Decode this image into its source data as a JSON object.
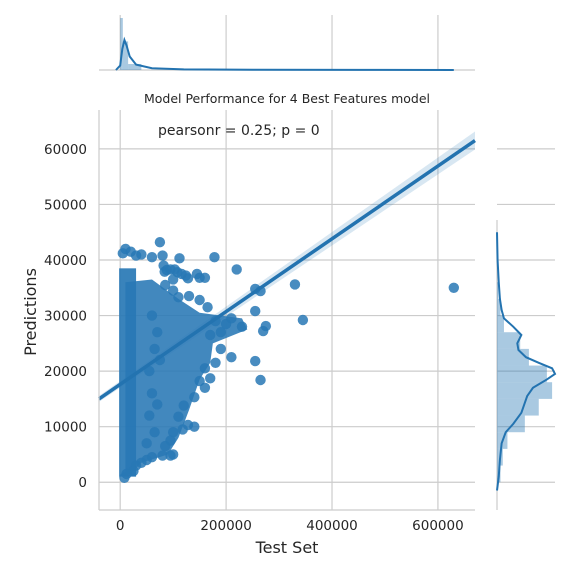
{
  "chart_data": {
    "type": "scatter",
    "title": "Model Performance for 4 Best Features model",
    "xlabel": "Test Set",
    "ylabel": "Predictions",
    "annotation": "pearsonr = 0.25; p = 0",
    "xlim": [
      -40000,
      670000
    ],
    "ylim": [
      -5000,
      67000
    ],
    "x_ticks": [
      0,
      200000,
      400000,
      600000
    ],
    "x_tick_labels": [
      "0",
      "200000",
      "400000",
      "600000"
    ],
    "y_ticks": [
      0,
      10000,
      20000,
      30000,
      40000,
      50000,
      60000
    ],
    "y_tick_labels": [
      "0",
      "10000",
      "20000",
      "30000",
      "40000",
      "50000",
      "60000"
    ],
    "grid": true,
    "color": "#2878b5",
    "regression": {
      "x": [
        -40000,
        670000
      ],
      "y": [
        15000,
        61500
      ]
    },
    "points": [
      [
        5000,
        41200
      ],
      [
        10000,
        42000
      ],
      [
        20000,
        41500
      ],
      [
        30000,
        40800
      ],
      [
        40000,
        41000
      ],
      [
        60000,
        40500
      ],
      [
        75000,
        43200
      ],
      [
        80000,
        40800
      ],
      [
        82000,
        39000
      ],
      [
        84000,
        37900
      ],
      [
        88000,
        38200
      ],
      [
        95000,
        38300
      ],
      [
        100000,
        36500
      ],
      [
        103000,
        38300
      ],
      [
        108000,
        37800
      ],
      [
        112000,
        40300
      ],
      [
        116000,
        37500
      ],
      [
        124000,
        37200
      ],
      [
        128000,
        36700
      ],
      [
        145000,
        37500
      ],
      [
        150000,
        36800
      ],
      [
        160000,
        36800
      ],
      [
        178000,
        40500
      ],
      [
        220000,
        38300
      ],
      [
        85000,
        35500
      ],
      [
        100000,
        34500
      ],
      [
        110000,
        33300
      ],
      [
        130000,
        33500
      ],
      [
        150000,
        32800
      ],
      [
        165000,
        31500
      ],
      [
        255000,
        34800
      ],
      [
        265000,
        34400
      ],
      [
        255000,
        30800
      ],
      [
        275000,
        28100
      ],
      [
        270000,
        27200
      ],
      [
        330000,
        35600
      ],
      [
        345000,
        29200
      ],
      [
        255000,
        21800
      ],
      [
        265000,
        18400
      ],
      [
        210000,
        22500
      ],
      [
        190000,
        24000
      ],
      [
        180000,
        21500
      ],
      [
        160000,
        20500
      ],
      [
        150000,
        18200
      ],
      [
        160000,
        17000
      ],
      [
        170000,
        18700
      ],
      [
        140000,
        15300
      ],
      [
        120000,
        13800
      ],
      [
        110000,
        11800
      ],
      [
        118000,
        9500
      ],
      [
        128000,
        10300
      ],
      [
        140000,
        10000
      ],
      [
        100000,
        9000
      ],
      [
        95000,
        7500
      ],
      [
        85000,
        6500
      ],
      [
        100000,
        5000
      ],
      [
        95000,
        4800
      ],
      [
        80000,
        4800
      ],
      [
        60000,
        4500
      ],
      [
        50000,
        4000
      ],
      [
        40000,
        3500
      ],
      [
        30000,
        3000
      ],
      [
        25000,
        2000
      ],
      [
        12000,
        1500
      ],
      [
        8000,
        800
      ],
      [
        630000,
        35000
      ],
      [
        180000,
        29000
      ],
      [
        200000,
        28500
      ],
      [
        210000,
        29500
      ],
      [
        230000,
        28000
      ],
      [
        170000,
        26500
      ],
      [
        190000,
        27000
      ],
      [
        60000,
        30000
      ],
      [
        70000,
        27000
      ],
      [
        65000,
        24000
      ],
      [
        55000,
        20000
      ],
      [
        75000,
        22000
      ],
      [
        60000,
        16000
      ],
      [
        70000,
        14000
      ],
      [
        55000,
        12000
      ],
      [
        65000,
        9000
      ],
      [
        50000,
        7000
      ]
    ],
    "hist_x": {
      "bin_edges": [
        0,
        5000,
        10000,
        15000,
        20000,
        30000
      ],
      "density_peak_x": 8000
    },
    "hist_y": {
      "bins": [
        {
          "y": 3000,
          "w": 0.06
        },
        {
          "y": 6000,
          "w": 0.1
        },
        {
          "y": 9000,
          "w": 0.18
        },
        {
          "y": 12000,
          "w": 0.48
        },
        {
          "y": 15000,
          "w": 0.72
        },
        {
          "y": 18000,
          "w": 0.95
        },
        {
          "y": 21000,
          "w": 0.86
        },
        {
          "y": 24000,
          "w": 0.55
        },
        {
          "y": 27000,
          "w": 0.4
        },
        {
          "y": 30000,
          "w": 0.12
        },
        {
          "y": 33000,
          "w": 0.06
        },
        {
          "y": 36000,
          "w": 0.02
        }
      ],
      "density": [
        [
          -1500,
          0.0
        ],
        [
          1000,
          0.03
        ],
        [
          4000,
          0.05
        ],
        [
          7000,
          0.08
        ],
        [
          9000,
          0.15
        ],
        [
          10500,
          0.28
        ],
        [
          12500,
          0.42
        ],
        [
          14000,
          0.47
        ],
        [
          15500,
          0.52
        ],
        [
          17000,
          0.62
        ],
        [
          18500,
          0.86
        ],
        [
          19500,
          1.0
        ],
        [
          20500,
          0.95
        ],
        [
          21500,
          0.72
        ],
        [
          22500,
          0.5
        ],
        [
          23800,
          0.37
        ],
        [
          25000,
          0.35
        ],
        [
          26500,
          0.42
        ],
        [
          28000,
          0.28
        ],
        [
          29500,
          0.12
        ],
        [
          31000,
          0.08
        ],
        [
          33000,
          0.05
        ],
        [
          36000,
          0.03
        ],
        [
          40000,
          0.01
        ],
        [
          45000,
          0.0
        ]
      ]
    }
  }
}
